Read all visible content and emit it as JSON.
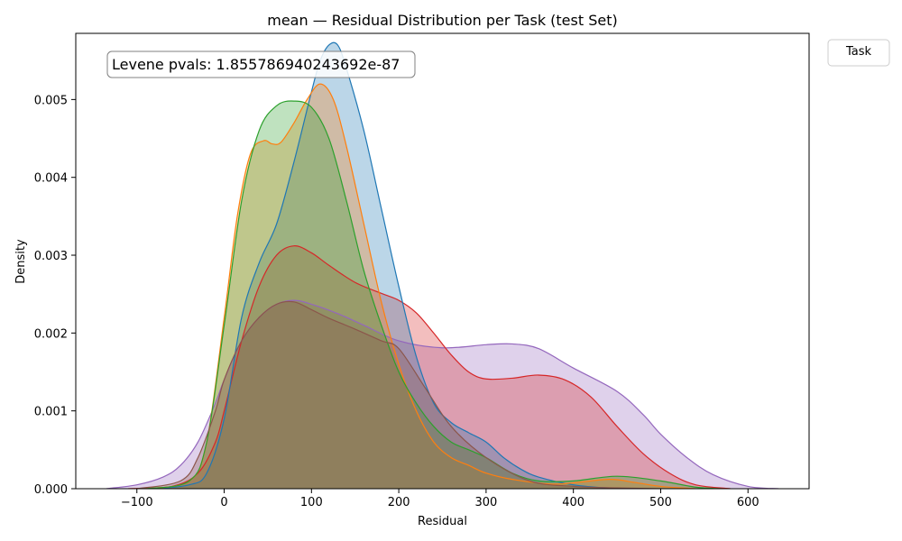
{
  "chart_data": {
    "type": "area",
    "title": "mean — Residual Distribution per Task (test Set)",
    "xlabel": "Residual",
    "ylabel": "Density",
    "xlim": [
      -170,
      670
    ],
    "ylim": [
      0,
      0.00585
    ],
    "xticks": [
      -100,
      0,
      100,
      200,
      300,
      400,
      500,
      600
    ],
    "xtick_labels": [
      "−100",
      "0",
      "100",
      "200",
      "300",
      "400",
      "500",
      "600"
    ],
    "yticks": [
      0,
      0.001,
      0.002,
      0.003,
      0.004,
      0.005
    ],
    "ytick_labels": [
      "0.000",
      "0.001",
      "0.002",
      "0.003",
      "0.004",
      "0.005"
    ],
    "grid": false,
    "legend": {
      "title": "Task",
      "placement": "top-right-outside",
      "entries": []
    },
    "annotation": "Levene pvals: 1.855786940243692e-87",
    "series": [
      {
        "color": "#9467bd",
        "x": [
          -135,
          -100,
          -70,
          -50,
          -30,
          -10,
          0,
          20,
          40,
          60,
          80,
          100,
          130,
          160,
          200,
          250,
          300,
          330,
          360,
          400,
          450,
          480,
          500,
          530,
          560,
          600,
          635
        ],
        "y": [
          0,
          5e-05,
          0.00015,
          0.0003,
          0.0006,
          0.0011,
          0.0014,
          0.0019,
          0.0022,
          0.00237,
          0.00242,
          0.00237,
          0.00225,
          0.0021,
          0.0019,
          0.00181,
          0.00185,
          0.00186,
          0.0018,
          0.00155,
          0.00125,
          0.00095,
          0.0007,
          0.0004,
          0.00018,
          3e-05,
          0
        ]
      },
      {
        "color": "#d62728",
        "x": [
          -110,
          -60,
          -30,
          -10,
          0,
          20,
          40,
          60,
          80,
          100,
          120,
          150,
          180,
          200,
          220,
          240,
          260,
          280,
          300,
          330,
          360,
          390,
          420,
          450,
          480,
          510,
          540,
          580
        ],
        "y": [
          0,
          3e-05,
          0.0002,
          0.0006,
          0.001,
          0.0019,
          0.0026,
          0.003,
          0.00312,
          0.00303,
          0.00287,
          0.00265,
          0.00251,
          0.00242,
          0.00226,
          0.002,
          0.00172,
          0.0015,
          0.00141,
          0.00142,
          0.00146,
          0.0014,
          0.00118,
          0.0008,
          0.00045,
          0.0002,
          5e-05,
          0
        ]
      },
      {
        "color": "#1f77b4",
        "x": [
          -80,
          -40,
          -20,
          0,
          20,
          40,
          60,
          80,
          100,
          110,
          120,
          130,
          140,
          160,
          180,
          200,
          220,
          240,
          260,
          280,
          300,
          320,
          340,
          360,
          400,
          440,
          480
        ],
        "y": [
          0,
          5e-05,
          0.0002,
          0.0009,
          0.0022,
          0.0029,
          0.0034,
          0.0042,
          0.0051,
          0.0055,
          0.0057,
          0.0057,
          0.0054,
          0.0046,
          0.0036,
          0.0026,
          0.0017,
          0.0011,
          0.00085,
          0.00072,
          0.0006,
          0.0004,
          0.00025,
          0.00015,
          5e-05,
          1e-05,
          0
        ]
      },
      {
        "color": "#ff7f0e",
        "x": [
          -90,
          -40,
          -20,
          0,
          15,
          30,
          45,
          55,
          65,
          80,
          95,
          110,
          125,
          140,
          160,
          180,
          200,
          220,
          240,
          260,
          280,
          300,
          330,
          380,
          440,
          470,
          500,
          540
        ],
        "y": [
          0,
          0.0001,
          0.0006,
          0.0022,
          0.0035,
          0.0043,
          0.00447,
          0.00443,
          0.00445,
          0.0047,
          0.005,
          0.0052,
          0.005,
          0.0044,
          0.0034,
          0.0024,
          0.0016,
          0.001,
          0.0006,
          0.0004,
          0.0003,
          0.0002,
          0.00012,
          6e-05,
          0.00012,
          8e-05,
          3e-05,
          0
        ]
      },
      {
        "color": "#2ca02c",
        "x": [
          -90,
          -40,
          -20,
          0,
          20,
          40,
          60,
          80,
          100,
          120,
          140,
          160,
          180,
          200,
          220,
          240,
          260,
          280,
          300,
          330,
          360,
          400,
          450,
          500,
          540,
          570
        ],
        "y": [
          0,
          0.0001,
          0.0006,
          0.0021,
          0.0037,
          0.0046,
          0.00492,
          0.00498,
          0.0049,
          0.0045,
          0.0037,
          0.0028,
          0.0021,
          0.0015,
          0.0011,
          0.0008,
          0.0006,
          0.0005,
          0.0004,
          0.0002,
          0.0001,
          0.0001,
          0.00016,
          0.0001,
          2e-05,
          0
        ]
      },
      {
        "color": "#8c564b",
        "x": [
          -100,
          -50,
          -30,
          -10,
          0,
          20,
          40,
          60,
          80,
          100,
          120,
          150,
          180,
          200,
          230,
          260,
          300,
          350,
          400,
          450,
          500
        ],
        "y": [
          0,
          0.0001,
          0.0004,
          0.001,
          0.0014,
          0.0019,
          0.0022,
          0.00237,
          0.0024,
          0.0023,
          0.00219,
          0.00205,
          0.0019,
          0.0018,
          0.0013,
          0.0008,
          0.0004,
          0.0001,
          3e-05,
          1e-05,
          0
        ]
      }
    ]
  }
}
